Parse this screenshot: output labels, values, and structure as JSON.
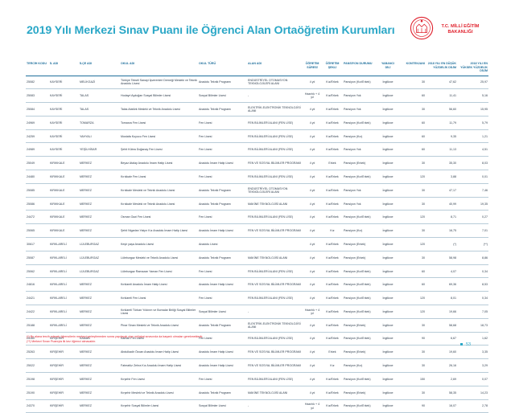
{
  "header": {
    "title": "2019 Yılı Merkezi Sınav Puanı ile Öğrenci Alan Ortaöğretim Kurumları",
    "logo_line1": "T.C. MİLLİ EĞİTİM",
    "logo_line2": "BAKANLIĞI"
  },
  "table": {
    "columns": [
      "TERCİH KODU",
      "İL ADI",
      "İLÇE ADI",
      "OKUL ADI",
      "OKUL TÜRÜ",
      "ALAN ADI",
      "ÖĞRETİM SÜRESİ",
      "ÖĞRETİM ŞEKLİ",
      "PANSİYON DURUMU",
      "YABANCI DİLİ",
      "KONTENJANI",
      "2018 YILI EN DÜŞÜK YÜZDELİK DİLİM",
      "2018 YILI EN YÜKSEK YÜZDELİK DİLİM"
    ],
    "rows": [
      [
        "25082",
        "KAYSERİ",
        "MELİKGAZİ",
        "Türkiye Tekstil Sanayi İşverenleri Derneği Mesleki ve Teknik Anadolu Lisesi",
        "Anadolu Teknik Programı",
        "ENDÜSTRİYEL OTOMASYON TEKNOLOJİLERİ ALANI",
        "4 yıl",
        "Kız/Erkek",
        "Pansiyon (Kız/Erkek)",
        "İngilizce",
        "30",
        "47,62",
        "25,97"
      ],
      [
        "25083",
        "KAYSERİ",
        "TALAS",
        "Hodayri Aydoğan Sosyal Bilimler Lisesi",
        "Sosyal Bilimler Lisesi",
        "-",
        "Hazırlık + 4 yıl",
        "Kız/Erkek",
        "Pansiyon Yok",
        "İngilizce",
        "60",
        "11,41",
        "5,16"
      ],
      [
        "25084",
        "KAYSERİ",
        "TALAS",
        "Talas Atatürk Mesleki ve Teknik Anadolu Lisesi",
        "Anadolu Teknik Programı",
        "ELEKTRİK-ELEKTRONİK TEKNOLOJİSİ ALANI",
        "4 yıl",
        "Kız/Erkek",
        "Pansiyon Yok",
        "İngilizce",
        "30",
        "56,60",
        "15,95"
      ],
      [
        "24969",
        "KAYSERİ",
        "TOMARZA",
        "Tomarza Fen Lisesi",
        "Fen Lisesi",
        "FEN BİLİMLERİ ALANI (FEN LİSE)",
        "4 yıl",
        "Kız/Erkek",
        "Pansiyon (Kız/Erkek)",
        "İngilizce",
        "60",
        "11,79",
        "5,79"
      ],
      [
        "24259",
        "KAYSERİ",
        "YAHYALI",
        "Mustafa Kuyucu Fen Lisesi",
        "Fen Lisesi",
        "FEN BİLİMLERİ ALANI (FEN LİSE)",
        "4 yıl",
        "Kız/Erkek",
        "Pansiyon (Kız)",
        "İngilizce",
        "60",
        "9,35",
        "1,21"
      ],
      [
        "24989",
        "KAYSERİ",
        "YEŞİLHİSAR",
        "Şehit Kübra Doğanay Fen Lisesi",
        "Fen Lisesi",
        "FEN BİLİMLERİ ALANI (FEN LİSE)",
        "4 yıl",
        "Kız/Erkek",
        "Pansiyon Yok",
        "İngilizce",
        "60",
        "11,13",
        "4,51"
      ],
      [
        "25049",
        "KIRIKKALE",
        "MERKEZ",
        "Beyaz Atalay Anadolu İmam Hatip Lisesi",
        "Anadolu İmam Hatip Lisesi",
        "FEN VE SOSYAL BİLİMLER PROGRAMI",
        "4 yıl",
        "Erkek",
        "Pansiyon (Erkek)",
        "İngilizce",
        "30",
        "35,30",
        "8,03"
      ],
      [
        "24480",
        "KIRIKKALE",
        "MERKEZ",
        "Kırıkkale Fen Lisesi",
        "Fen Lisesi",
        "FEN BİLİMLERİ ALANI (FEN LİSE)",
        "4 yıl",
        "Kız/Erkek",
        "Pansiyon (Kız/Erkek)",
        "İngilizce",
        "120",
        "3,88",
        "0,01"
      ],
      [
        "25085",
        "KIRIKKALE",
        "MERKEZ",
        "Kırıkkale Mesleki ve Teknik Anadolu Lisesi",
        "Anadolu Teknik Programı",
        "ENDÜSTRİYEL OTOMASYON TEKNOLOJİLERİ ALANI",
        "4 yıl",
        "Kız/Erkek",
        "Pansiyon Yok",
        "İngilizce",
        "30",
        "47,17",
        "7,46"
      ],
      [
        "25086",
        "KIRIKKALE",
        "MERKEZ",
        "Kırıkkale Mesleki ve Teknik Anadolu Lisesi",
        "Anadolu Teknik Programı",
        "MAKİNE TEKNOLOJİSİ ALANI",
        "4 yıl",
        "Kız/Erkek",
        "Pansiyon Yok",
        "İngilizce",
        "30",
        "40,99",
        "19,35"
      ],
      [
        "24472",
        "KIRIKKALE",
        "MERKEZ",
        "Osman Gazi Fen Lisesi",
        "Fen Lisesi",
        "FEN BİLİMLERİ ALANI (FEN LİSE)",
        "4 yıl",
        "Kız/Erkek",
        "Pansiyon (Kız/Erkek)",
        "İngilizce",
        "120",
        "8,71",
        "0,27"
      ],
      [
        "25065",
        "KIRIKKALE",
        "MERKEZ",
        "Şehit Nigarlan Yalçın Kız Anadolu İmam Hatip Lisesi",
        "Anadolu İmam Hatip Lisesi",
        "FEN VE SOSYAL BİLİMLER PROGRAMI",
        "4 yıl",
        "Kız",
        "Pansiyon (Kız)",
        "İngilizce",
        "30",
        "16,75",
        "7,01"
      ],
      [
        "30617",
        "KIRKLARELİ",
        "LÜLEBURGAZ",
        "Keşir yaşa Anadolu Lisesi",
        "Anadolu Lisesi",
        "",
        "4 yıl",
        "Kız/Erkek",
        "Pansiyon (Erkek)",
        "İngilizce",
        "120",
        "(*)",
        "(**)"
      ],
      [
        "25087",
        "KIRKLARELİ",
        "LÜLEBURGAZ",
        "Lüleburgaz Mesleki ve Teknik Anadolu Lisesi",
        "Anadolu Teknik Programı",
        "MAKİNE TEKNOLOJİSİ ALANI",
        "4 yıl",
        "Kız/Erkek",
        "Pansiyon (Erkek)",
        "İngilizce",
        "30",
        "58,98",
        "8,86"
      ],
      [
        "25062",
        "KIRKLARELİ",
        "LÜLEBURGAZ",
        "Lüleburgaz Ramazan Yaman Fen Lisesi",
        "Fen Lisesi",
        "FEN BİLİMLERİ ALANI (FEN LİSE)",
        "4 yıl",
        "Kız/Erkek",
        "Pansiyon (Kız/Erkek)",
        "İngilizce",
        "60",
        "4,07",
        "0,34"
      ],
      [
        "24816",
        "KIRKLARELİ",
        "MERKEZ",
        "Kırklareli Anadolu İmam Hatip Lisesi",
        "Anadolu İmam Hatip Lisesi",
        "FEN VE SOSYAL BİLİMLER PROGRAMI",
        "4 yıl",
        "Kız/Erkek",
        "Pansiyon (Kız/Erkek)",
        "İngilizce",
        "60",
        "69,36",
        "8,53"
      ],
      [
        "24421",
        "KIRKLARELİ",
        "MERKEZ",
        "Kırklareli Fen Lisesi",
        "Fen Lisesi",
        "FEN BİLİMLERİ ALANI (FEN LİSE)",
        "4 yıl",
        "Kız/Erkek",
        "Pansiyon (Kız/Erkek)",
        "İngilizce",
        "120",
        "8,01",
        "0,34"
      ],
      [
        "24422",
        "KIRKLARELİ",
        "MERKEZ",
        "Kırklareli Türkan Yıldırım ve Bornalar Birliği Sosyal Bilimler Lisesi",
        "Sosyal Bilimler Lisesi",
        "-",
        "Hazırlık + 4 yıl",
        "Kız/Erkek",
        "Pansiyon (Kız/Erkek)",
        "İngilizce",
        "120",
        "19,66",
        "7,05"
      ],
      [
        "25188",
        "KIRKLARELİ",
        "MERKEZ",
        "Pinar Sinan Mesleki ve Teknik Anadolu Lisesi",
        "Anadolu Teknik Programı",
        "ELEKTRİK-ELEKTRONİK TEKNOLOJİSİ ALANI",
        "4 yıl",
        "Kız/Erkek",
        "Pansiyon (Erkek)",
        "İngilizce",
        "30",
        "58,68",
        "18,73"
      ],
      [
        "25160",
        "KIRŞEHİR",
        "KAMAN",
        "Kaman Fen Lisesi",
        "Fen Lisesi",
        "FEN BİLİMLERİ ALANI (FEN LİSE)",
        "4 yıl",
        "Kız/Erkek",
        "Pansiyon (Kız/Erkek)",
        "İngilizce",
        "90",
        "6,67",
        "1,62"
      ],
      [
        "25263",
        "KIRŞEHİR",
        "MERKEZ",
        "Abdulkadir Özcan Anadolu İmam Hatip Lisesi",
        "Anadolu İmam Hatip Lisesi",
        "FEN VE SOSYAL BİLİMLER PROGRAMI",
        "4 yıl",
        "Erkek",
        "Pansiyon (Erkek)",
        "İngilizce",
        "30",
        "19,60",
        "3,35"
      ],
      [
        "25022",
        "KIRŞEHİR",
        "MERKEZ",
        "Fatmatüz Zehra Kız Anadolu İmam Hatip Lisesi",
        "Anadolu İmam Hatip Lisesi",
        "FEN VE SOSYAL BİLİMLER PROGRAMI",
        "4 yıl",
        "Kız",
        "Pansiyon (Kız)",
        "İngilizce",
        "30",
        "26,16",
        "3,29"
      ],
      [
        "25198",
        "KIRŞEHİR",
        "MERKEZ",
        "Kırşehir Fen Lisesi",
        "Fen Lisesi",
        "FEN BİLİMLERİ ALANI (FEN LİSE)",
        "4 yıl",
        "Kız/Erkek",
        "Pansiyon (Kız/Erkek)",
        "İngilizce",
        "150",
        "2,69",
        "0,07"
      ],
      [
        "25190",
        "KIRŞEHİR",
        "MERKEZ",
        "Kırşehir Mesleki ve Teknik Anadolu Lisesi",
        "Anadolu Teknik Programı",
        "MAKİNE TEKNOLOJİSİ ALANI",
        "4 yıl",
        "Kız/Erkek",
        "Pansiyon (Erkek)",
        "İngilizce",
        "30",
        "58,35",
        "14,23"
      ],
      [
        "24370",
        "KIRŞEHİR",
        "MERKEZ",
        "Kırşehir Sosyal Bilimler Lisesi",
        "Sosyal Bilimler Lisesi",
        "-",
        "Hazırlık + 4 yıl",
        "Kız/Erkek",
        "Pansiyon (Kız/Erkek)",
        "İngilizce",
        "90",
        "16,07",
        "2,78"
      ]
    ]
  },
  "footnotes": [
    "(*) Bu alana tercih edecek öğrencilerin merkezi yerleştirmeden sonra yapılacak olan mülakat sınavında da başarılı olmaları gerekmektedir.",
    "(**) Merkezi Sınav Puanıyla ilk kez öğrenci alınacaktır."
  ],
  "page_number": "53",
  "colors": {
    "title": "#2aa7c7",
    "logo": "#e0232f",
    "header": "#1f6f9c"
  }
}
